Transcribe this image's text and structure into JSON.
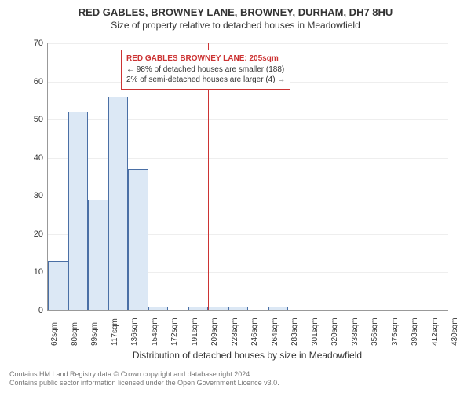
{
  "titles": {
    "main": "RED GABLES, BROWNEY LANE, BROWNEY, DURHAM, DH7 8HU",
    "sub": "Size of property relative to detached houses in Meadowfield"
  },
  "chart": {
    "type": "histogram",
    "ylabel": "Number of detached properties",
    "xlabel": "Distribution of detached houses by size in Meadowfield",
    "ylim_max": 70,
    "ytick_step": 10,
    "yticks": [
      0,
      10,
      20,
      30,
      40,
      50,
      60,
      70
    ],
    "xticks": [
      "62sqm",
      "80sqm",
      "99sqm",
      "117sqm",
      "136sqm",
      "154sqm",
      "172sqm",
      "191sqm",
      "209sqm",
      "228sqm",
      "246sqm",
      "264sqm",
      "283sqm",
      "301sqm",
      "320sqm",
      "338sqm",
      "356sqm",
      "375sqm",
      "393sqm",
      "412sqm",
      "430sqm"
    ],
    "bars": [
      13,
      52,
      29,
      56,
      37,
      1,
      0,
      1,
      1,
      1,
      0,
      1,
      0,
      0,
      0,
      0,
      0,
      0,
      0,
      0
    ],
    "bar_fill": "#dce8f5",
    "bar_stroke": "#4a6fa5",
    "grid_color": "#eeeeee",
    "axis_color": "#999999",
    "background": "#ffffff",
    "marker": {
      "x_position_bin": 8,
      "color": "#cc3333"
    },
    "callout": {
      "title": "RED GABLES BROWNEY LANE: 205sqm",
      "line1": "← 98% of detached houses are smaller (188)",
      "line2": "2% of semi-detached houses are larger (4) →",
      "border_color": "#cc3333",
      "title_color": "#cc3333"
    }
  },
  "footer": {
    "line1": "Contains HM Land Registry data © Crown copyright and database right 2024.",
    "line2": "Contains public sector information licensed under the Open Government Licence v3.0."
  }
}
